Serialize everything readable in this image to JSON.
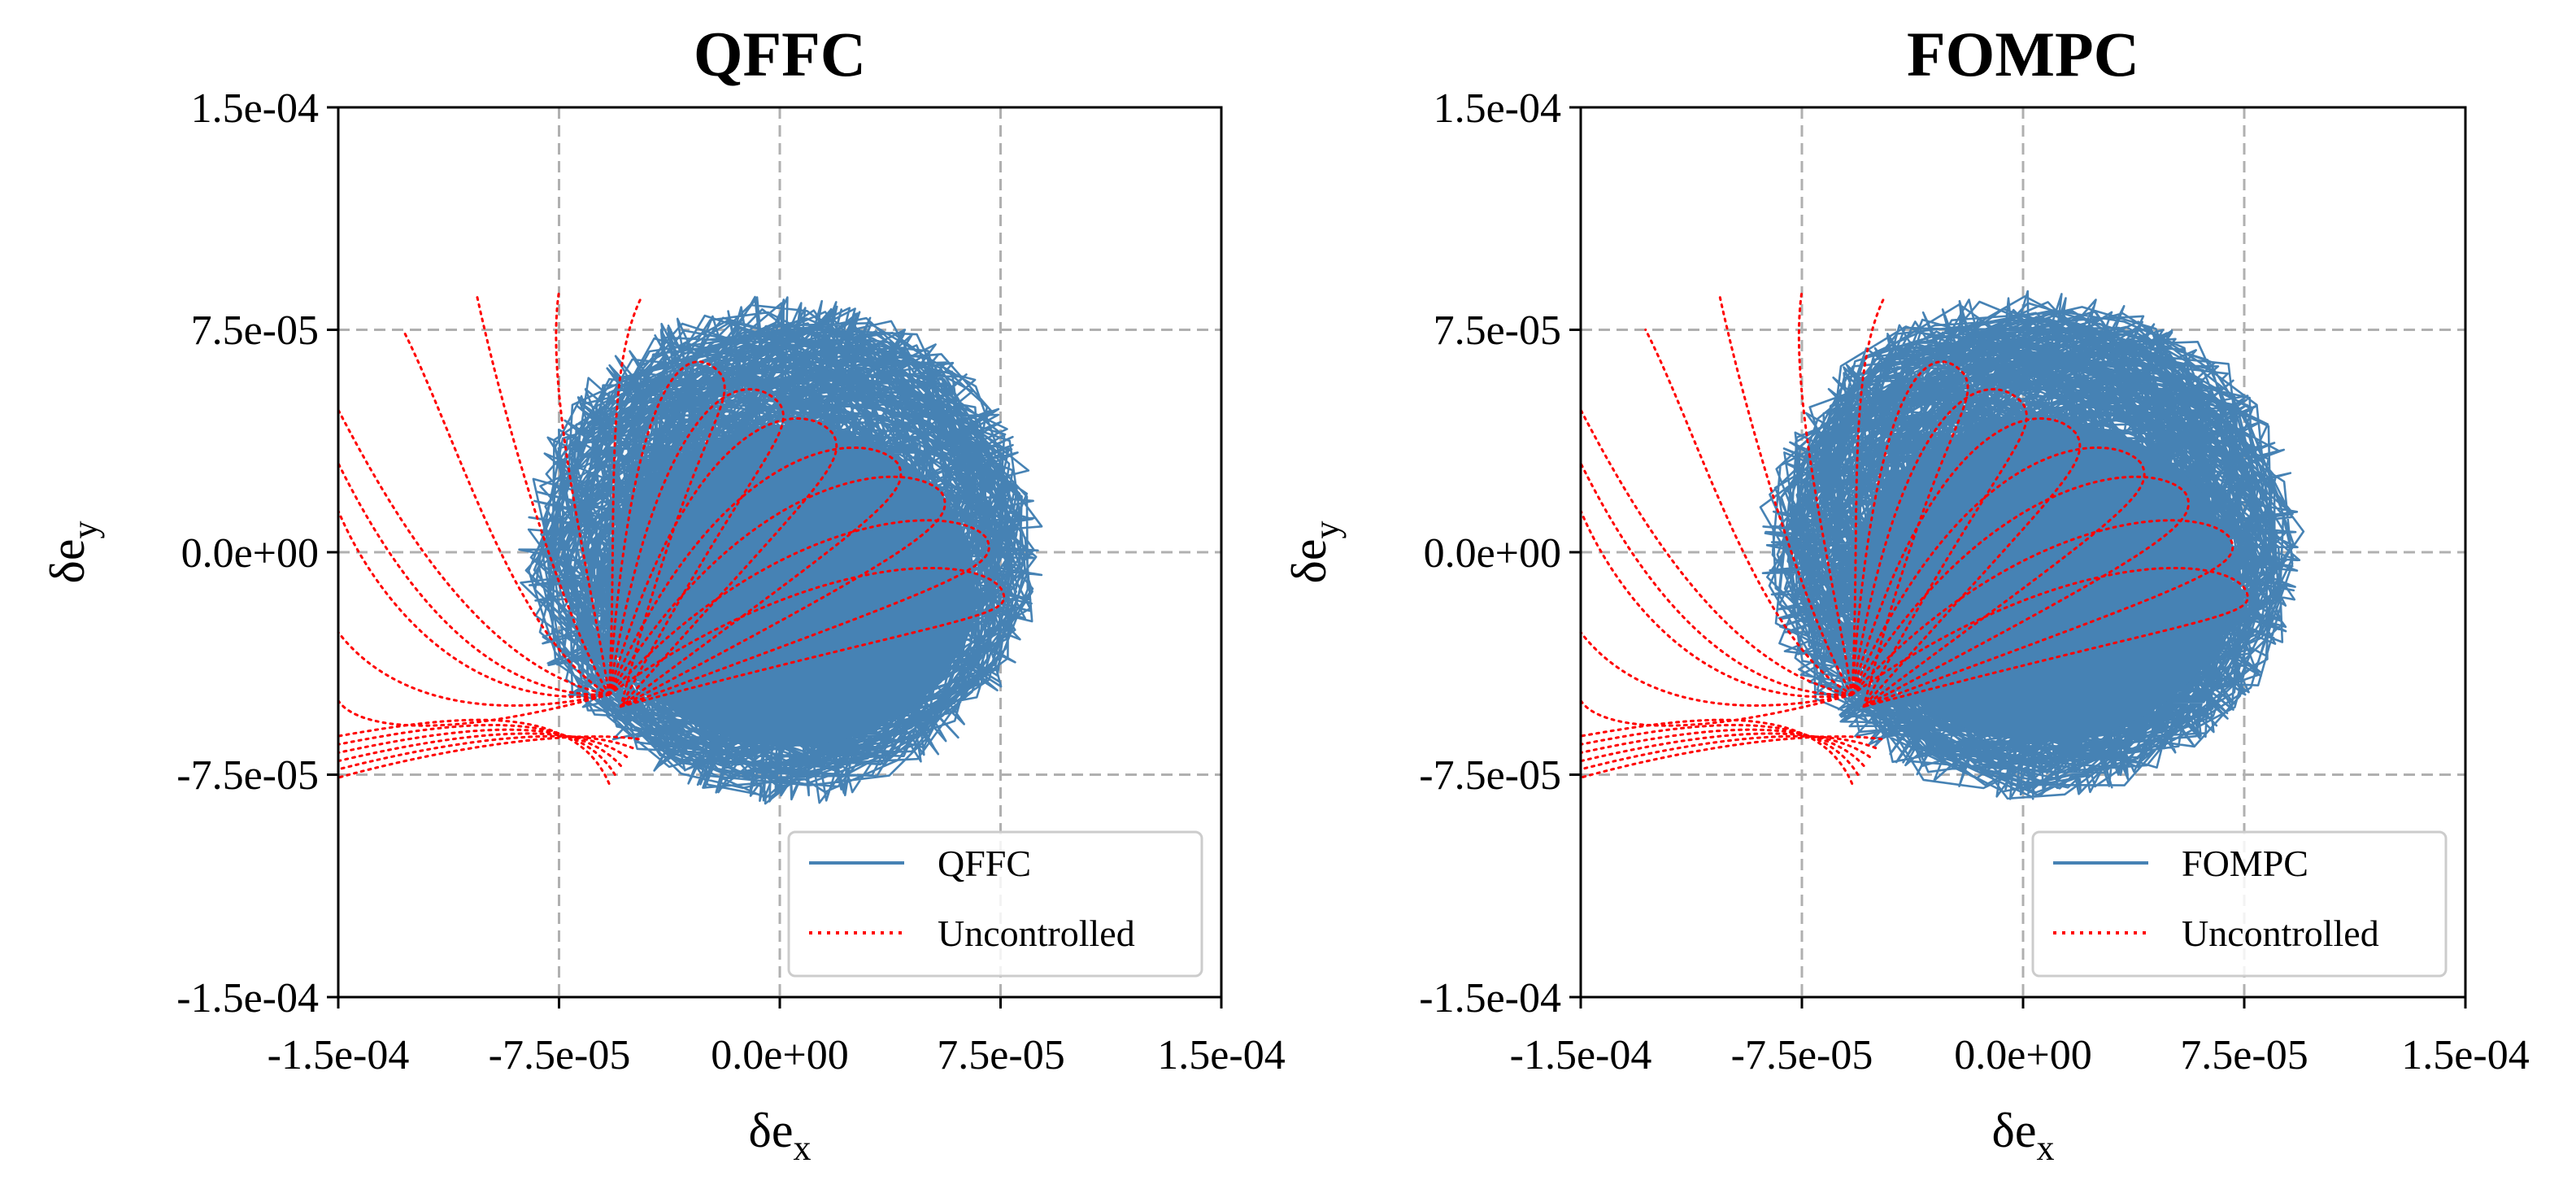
{
  "figure": {
    "panels": [
      {
        "id": "left",
        "title": "QFFC",
        "legend": {
          "controlled": "QFFC",
          "uncontrolled": "Uncontrolled"
        }
      },
      {
        "id": "right",
        "title": "FOMPC",
        "legend": {
          "controlled": "FOMPC",
          "uncontrolled": "Uncontrolled"
        }
      }
    ]
  },
  "chart_data": [
    {
      "type": "line",
      "title": "QFFC",
      "xlabel": "δe_x",
      "ylabel": "δe_y",
      "xlim": [
        -0.00015,
        0.00015
      ],
      "ylim": [
        -0.00015,
        0.00015
      ],
      "xticks": [
        -0.00015,
        -7.5e-05,
        0,
        7.5e-05,
        0.00015
      ],
      "yticks": [
        -0.00015,
        -7.5e-05,
        0,
        7.5e-05,
        0.00015
      ],
      "xtick_labels": [
        "-1.5e-04",
        "-7.5e-05",
        "0.0e+00",
        "7.5e-05",
        "1.5e-04"
      ],
      "ytick_labels": [
        "-1.5e-04",
        "-7.5e-05",
        "0.0e+00",
        "7.5e-05",
        "1.5e-04"
      ],
      "grid": true,
      "legend_position": "lower-right",
      "series": [
        {
          "name": "QFFC",
          "color": "#4682b4",
          "style": "solid",
          "description_center": [
            5e-07,
            6e-07
          ],
          "radius_x": 8.5e-05,
          "radius_y": 8.2e-05
        },
        {
          "name": "Uncontrolled",
          "color": "#ff0000",
          "style": "dotted",
          "convergence_point": [
            -5.8e-05,
            -4.8e-05
          ]
        }
      ]
    },
    {
      "type": "line",
      "title": "FOMPC",
      "xlabel": "δe_x",
      "ylabel": "δe_y",
      "xlim": [
        -0.00015,
        0.00015
      ],
      "ylim": [
        -0.00015,
        0.00015
      ],
      "xticks": [
        -0.00015,
        -7.5e-05,
        0,
        7.5e-05,
        0.00015
      ],
      "yticks": [
        -0.00015,
        -7.5e-05,
        0,
        7.5e-05,
        0.00015
      ],
      "xtick_labels": [
        "-1.5e-04",
        "-7.5e-05",
        "0.0e+00",
        "7.5e-05",
        "1.5e-04"
      ],
      "ytick_labels": [
        "-1.5e-04",
        "-7.5e-05",
        "0.0e+00",
        "7.5e-05",
        "1.5e-04"
      ],
      "grid": true,
      "legend_position": "lower-right",
      "series": [
        {
          "name": "FOMPC",
          "color": "#4682b4",
          "style": "solid",
          "description_center": [
            3e-06,
            2.5e-06
          ],
          "radius_x": 8.8e-05,
          "radius_y": 8.2e-05
        },
        {
          "name": "Uncontrolled",
          "color": "#ff0000",
          "style": "dotted",
          "convergence_point": [
            -5.8e-05,
            -4.8e-05
          ]
        }
      ]
    }
  ]
}
